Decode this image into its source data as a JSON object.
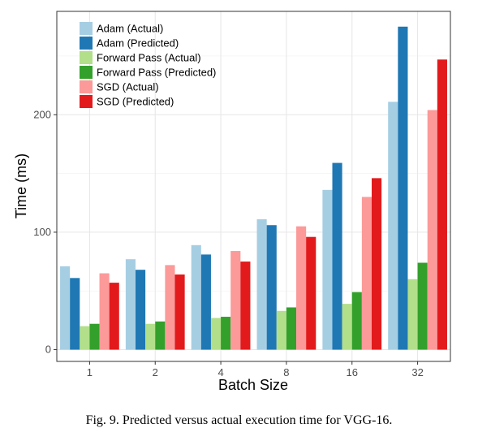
{
  "chart_data": {
    "type": "bar",
    "xlabel": "Batch Size",
    "ylabel": "Time (ms)",
    "categories": [
      "1",
      "2",
      "4",
      "8",
      "16",
      "32"
    ],
    "ylim": [
      -10,
      288
    ],
    "yticks": [
      0,
      100,
      200
    ],
    "grid": true,
    "legend_position": "top-left",
    "series": [
      {
        "name": "Adam (Actual)",
        "color": "#a6cee3",
        "values": [
          71,
          77,
          89,
          111,
          136,
          211
        ]
      },
      {
        "name": "Adam (Predicted)",
        "color": "#1f78b4",
        "values": [
          61,
          68,
          81,
          106,
          159,
          275
        ]
      },
      {
        "name": "Forward Pass (Actual)",
        "color": "#b2df8a",
        "values": [
          20,
          22,
          27,
          33,
          39,
          60
        ]
      },
      {
        "name": "Forward Pass (Predicted)",
        "color": "#33a02c",
        "values": [
          22,
          24,
          28,
          36,
          49,
          74
        ]
      },
      {
        "name": "SGD (Actual)",
        "color": "#fb9a99",
        "values": [
          65,
          72,
          84,
          105,
          130,
          204
        ]
      },
      {
        "name": "SGD (Predicted)",
        "color": "#e31a1c",
        "values": [
          57,
          64,
          75,
          96,
          146,
          247
        ]
      }
    ]
  },
  "caption": "Fig. 9.  Predicted versus actual execution time for VGG-16."
}
